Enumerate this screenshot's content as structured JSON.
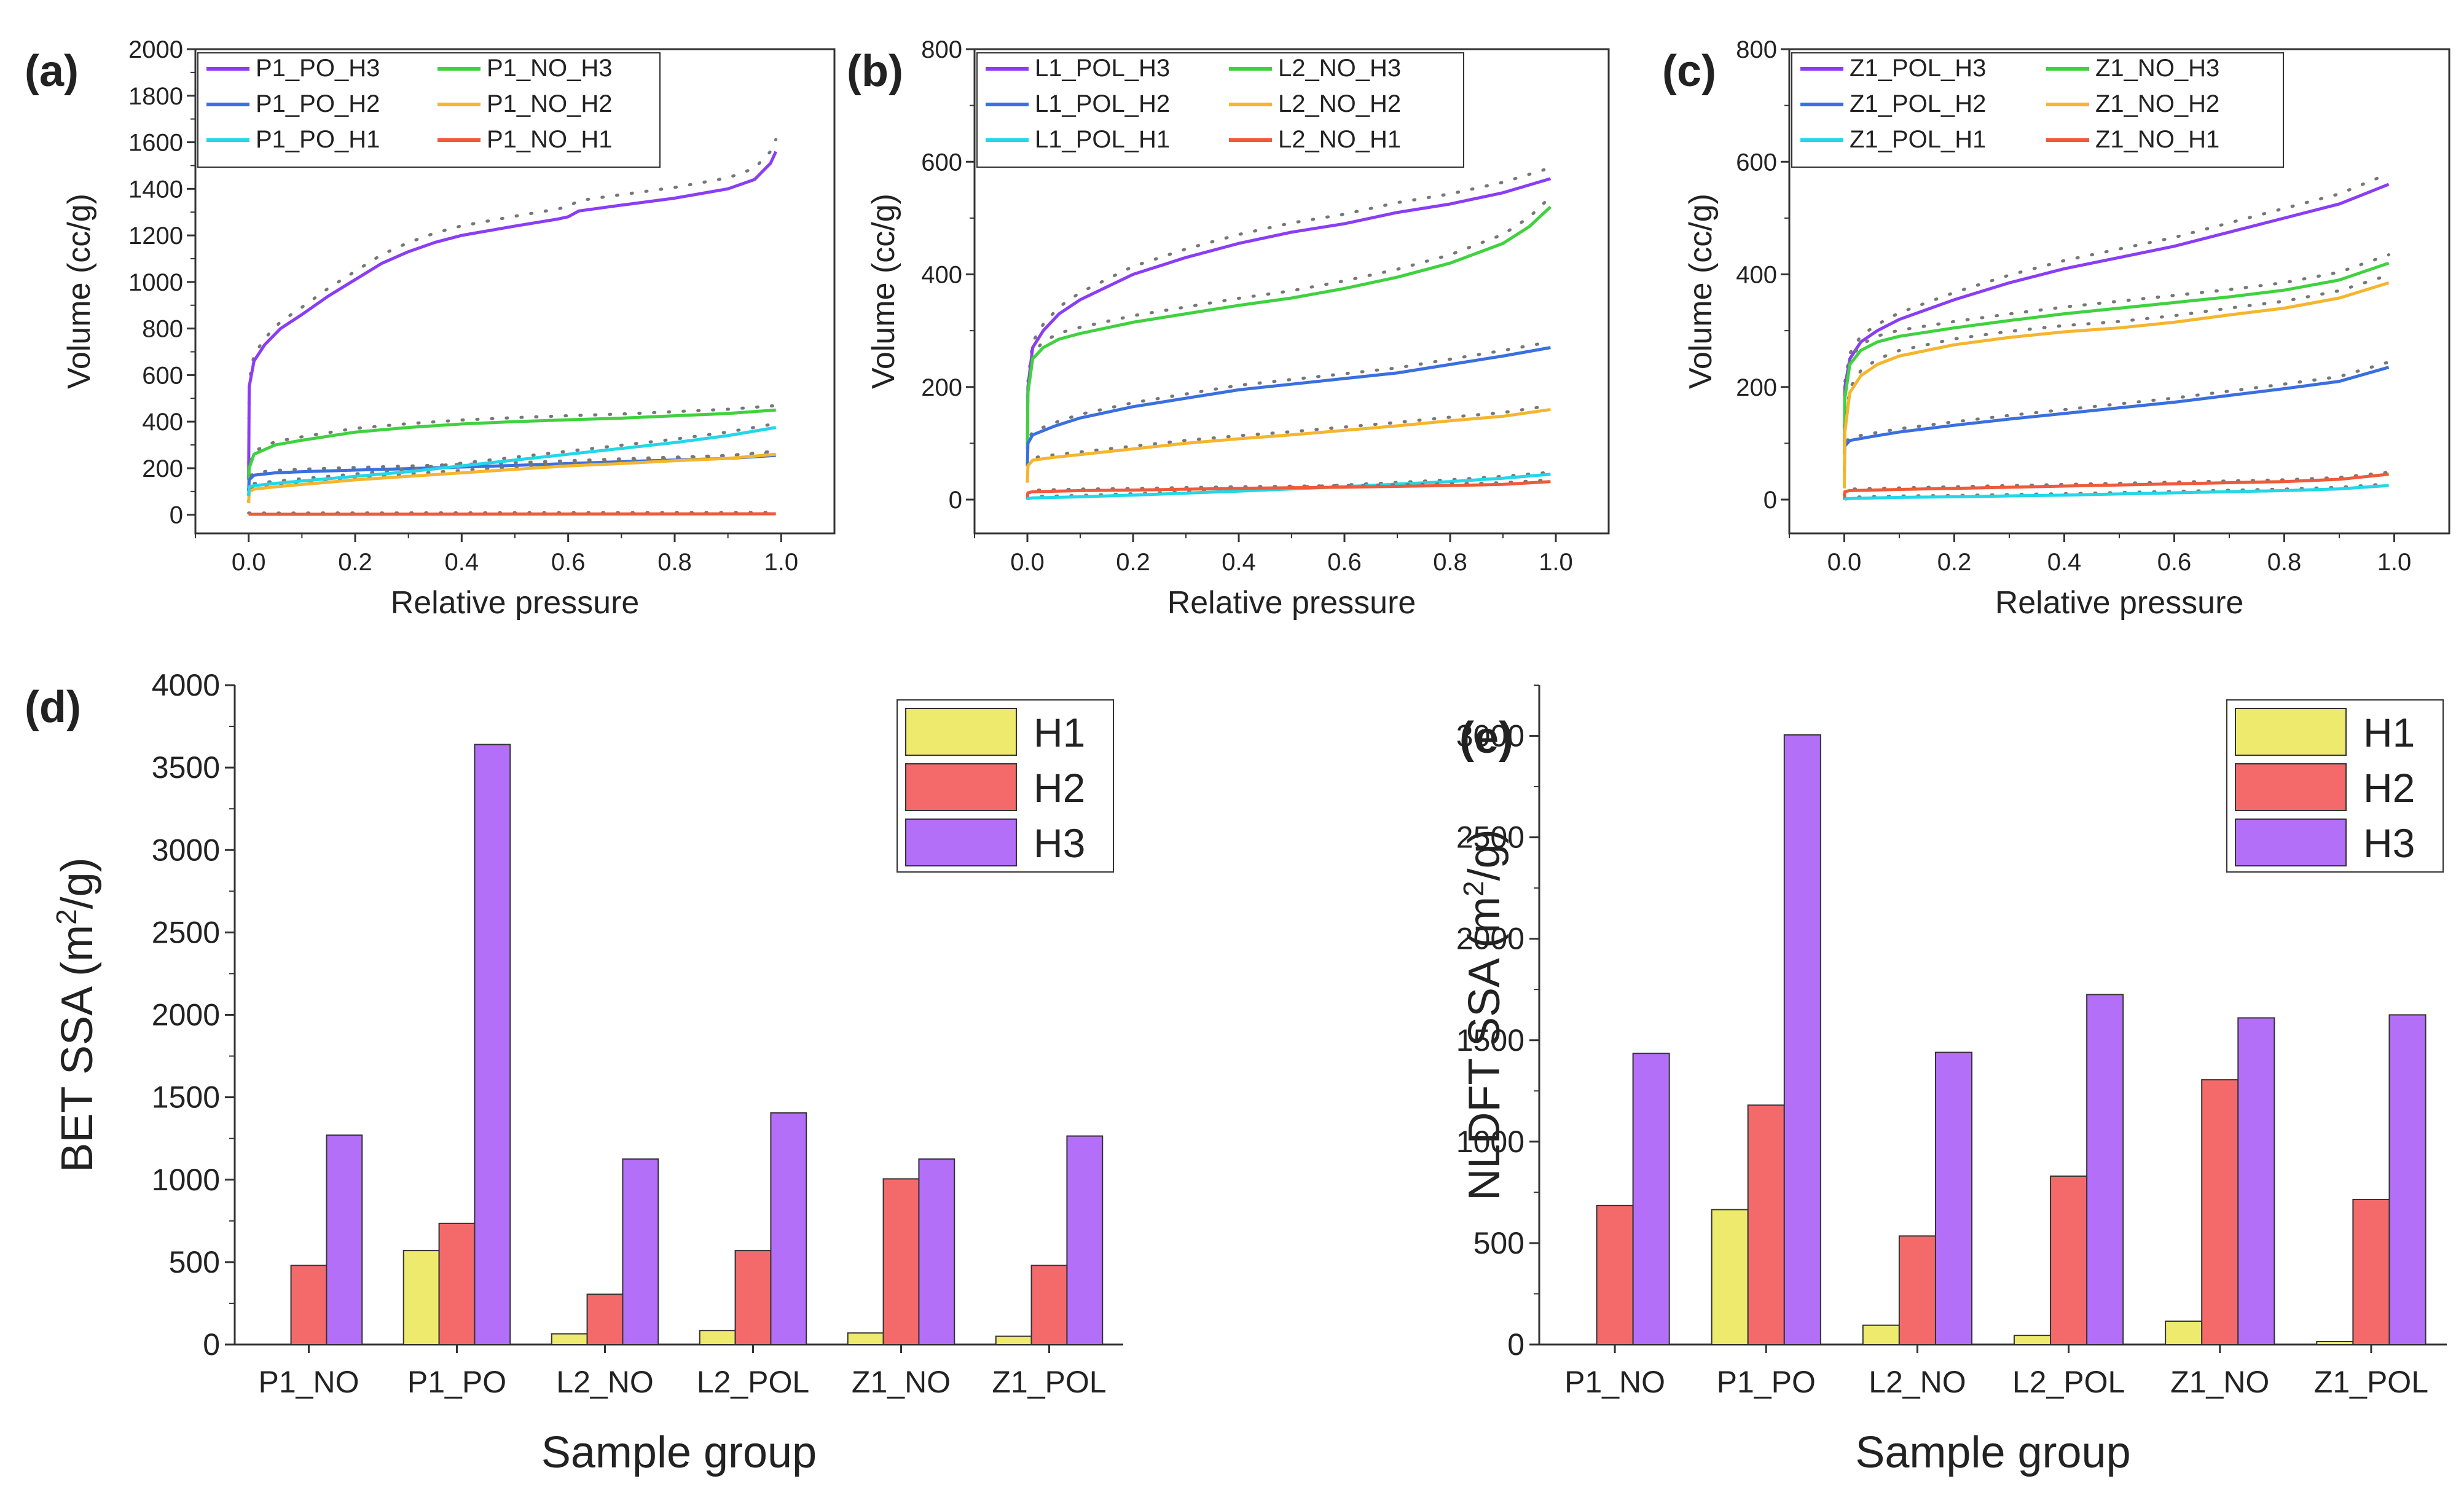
{
  "figure": {
    "colors": {
      "P1_PO_H3": "#8a3df5",
      "P1_NO_H3": "#3fd23f",
      "P1_PO_H2": "#3a6fe0",
      "P1_NO_H2": "#f5b62d",
      "P1_PO_H1": "#22d7e8",
      "P1_NO_H1": "#ee5a3a",
      "H1": "#eeea6e",
      "H2": "#f46a6a",
      "H3": "#b46ff8",
      "dots": "#777777"
    },
    "isotherm_panels": [
      {
        "label": "(a)",
        "xlabel": "Relative pressure",
        "ylabel": "Volume (cc/g)",
        "xlim": [
          -0.1,
          1.1
        ],
        "ylim": [
          -80,
          2000
        ],
        "xticks": [
          "0.0",
          "0.2",
          "0.4",
          "0.6",
          "0.8",
          "1.0"
        ],
        "yticks": [
          "0",
          "200",
          "400",
          "600",
          "800",
          "1000",
          "1200",
          "1400",
          "1600",
          "1800",
          "2000"
        ],
        "legend": [
          "P1_PO_H3",
          "P1_NO_H3",
          "P1_PO_H2",
          "P1_NO_H2",
          "P1_PO_H1",
          "P1_NO_H1"
        ]
      },
      {
        "label": "(b)",
        "xlabel": "Relative pressure",
        "ylabel": "Volume (cc/g)",
        "xlim": [
          -0.1,
          1.1
        ],
        "ylim": [
          -60,
          800
        ],
        "xticks": [
          "0.0",
          "0.2",
          "0.4",
          "0.6",
          "0.8",
          "1.0"
        ],
        "yticks": [
          "0",
          "200",
          "400",
          "600",
          "800"
        ],
        "legend": [
          "L1_POL_H3",
          "L2_NO_H3",
          "L1_POL_H2",
          "L2_NO_H2",
          "L1_POL_H1",
          "L2_NO_H1"
        ]
      },
      {
        "label": "(c)",
        "xlabel": "Relative pressure",
        "ylabel": "Volume (cc/g)",
        "xlim": [
          -0.1,
          1.1
        ],
        "ylim": [
          -60,
          800
        ],
        "xticks": [
          "0.0",
          "0.2",
          "0.4",
          "0.6",
          "0.8",
          "1.0"
        ],
        "yticks": [
          "0",
          "200",
          "400",
          "600",
          "800"
        ],
        "legend": [
          "Z1_POL_H3",
          "Z1_NO_H3",
          "Z1_POL_H2",
          "Z1_NO_H2",
          "Z1_POL_H1",
          "Z1_NO_H1"
        ]
      }
    ],
    "bar_panels": [
      {
        "label": "(d)",
        "xlabel": "Sample group",
        "ylabel_main": "BET SSA (m",
        "ylabel_sup": "2",
        "ylabel_end": "/g)",
        "ylim": [
          0,
          4000
        ],
        "yticks": [
          "0",
          "500",
          "1000",
          "1500",
          "2000",
          "2500",
          "3000",
          "3500",
          "4000"
        ],
        "legend": [
          "H1",
          "H2",
          "H3"
        ]
      },
      {
        "label": "(e)",
        "xlabel": "Sample group",
        "ylabel_main": "NLDFT SSA (m",
        "ylabel_sup": "2",
        "ylabel_end": "/g)",
        "ylim": [
          0,
          3250
        ],
        "yticks": [
          "0",
          "500",
          "1000",
          "1500",
          "2000",
          "2500",
          "3000"
        ],
        "legend": [
          "H1",
          "H2",
          "H3"
        ]
      }
    ]
  },
  "chart_data": [
    {
      "type": "line",
      "title": "(a)",
      "xlabel": "Relative pressure",
      "ylabel": "Volume (cc/g)",
      "xlim": [
        -0.1,
        1.1
      ],
      "ylim": [
        -80,
        2000
      ],
      "series": [
        {
          "name": "P1_PO_H3",
          "x": [
            0,
            0.001,
            0.01,
            0.03,
            0.06,
            0.1,
            0.15,
            0.2,
            0.25,
            0.3,
            0.35,
            0.4,
            0.5,
            0.58,
            0.6,
            0.62,
            0.7,
            0.8,
            0.9,
            0.95,
            0.98,
            0.99
          ],
          "y": [
            150,
            550,
            660,
            730,
            800,
            860,
            940,
            1010,
            1080,
            1130,
            1170,
            1200,
            1240,
            1270,
            1280,
            1305,
            1330,
            1360,
            1400,
            1440,
            1510,
            1560
          ]
        },
        {
          "name": "P1_NO_H3",
          "x": [
            0,
            0.001,
            0.01,
            0.05,
            0.1,
            0.2,
            0.3,
            0.4,
            0.5,
            0.6,
            0.7,
            0.8,
            0.9,
            0.99
          ],
          "y": [
            100,
            200,
            260,
            300,
            320,
            355,
            375,
            390,
            400,
            408,
            415,
            425,
            435,
            450
          ]
        },
        {
          "name": "P1_PO_H2",
          "x": [
            0,
            0.001,
            0.01,
            0.05,
            0.1,
            0.2,
            0.3,
            0.4,
            0.5,
            0.6,
            0.7,
            0.8,
            0.9,
            0.99
          ],
          "y": [
            100,
            150,
            170,
            180,
            185,
            192,
            198,
            205,
            212,
            220,
            228,
            235,
            242,
            255
          ]
        },
        {
          "name": "P1_NO_H2",
          "x": [
            0,
            0.001,
            0.01,
            0.05,
            0.1,
            0.2,
            0.3,
            0.4,
            0.5,
            0.6,
            0.7,
            0.8,
            0.9,
            0.99
          ],
          "y": [
            50,
            100,
            110,
            120,
            130,
            150,
            165,
            180,
            195,
            210,
            220,
            232,
            242,
            260
          ]
        },
        {
          "name": "P1_PO_H1",
          "x": [
            0,
            0.001,
            0.01,
            0.05,
            0.1,
            0.2,
            0.3,
            0.4,
            0.5,
            0.6,
            0.7,
            0.8,
            0.9,
            0.99
          ],
          "y": [
            80,
            120,
            125,
            135,
            145,
            165,
            185,
            210,
            235,
            260,
            285,
            310,
            340,
            375
          ]
        },
        {
          "name": "P1_NO_H1",
          "x": [
            0,
            0.5,
            0.99
          ],
          "y": [
            2,
            3,
            4
          ]
        }
      ],
      "model_fits_dotted": true
    },
    {
      "type": "line",
      "title": "(b)",
      "xlabel": "Relative pressure",
      "ylabel": "Volume (cc/g)",
      "xlim": [
        -0.1,
        1.1
      ],
      "ylim": [
        -60,
        800
      ],
      "series": [
        {
          "name": "L1_POL_H3",
          "x": [
            0,
            0.001,
            0.01,
            0.03,
            0.06,
            0.1,
            0.2,
            0.3,
            0.4,
            0.5,
            0.6,
            0.7,
            0.8,
            0.9,
            0.99
          ],
          "y": [
            100,
            200,
            270,
            300,
            330,
            355,
            400,
            430,
            455,
            475,
            490,
            510,
            525,
            545,
            570
          ]
        },
        {
          "name": "L2_NO_H3",
          "x": [
            0,
            0.001,
            0.01,
            0.03,
            0.06,
            0.1,
            0.2,
            0.3,
            0.4,
            0.5,
            0.6,
            0.7,
            0.8,
            0.9,
            0.95,
            0.99
          ],
          "y": [
            90,
            190,
            250,
            270,
            285,
            295,
            315,
            330,
            345,
            358,
            375,
            395,
            420,
            455,
            485,
            520
          ]
        },
        {
          "name": "L1_POL_H2",
          "x": [
            0,
            0.001,
            0.01,
            0.05,
            0.1,
            0.2,
            0.3,
            0.4,
            0.5,
            0.6,
            0.7,
            0.8,
            0.9,
            0.99
          ],
          "y": [
            60,
            100,
            115,
            130,
            145,
            165,
            180,
            195,
            205,
            215,
            225,
            240,
            255,
            270
          ]
        },
        {
          "name": "L2_NO_H2",
          "x": [
            0,
            0.001,
            0.01,
            0.05,
            0.1,
            0.2,
            0.3,
            0.4,
            0.5,
            0.6,
            0.7,
            0.8,
            0.9,
            0.99
          ],
          "y": [
            30,
            60,
            70,
            75,
            80,
            90,
            100,
            108,
            115,
            123,
            131,
            140,
            148,
            160
          ]
        },
        {
          "name": "L1_POL_H1",
          "x": [
            0,
            0.001,
            0.01,
            0.1,
            0.2,
            0.4,
            0.6,
            0.8,
            0.9,
            0.99
          ],
          "y": [
            0,
            2,
            3,
            5,
            8,
            15,
            23,
            32,
            38,
            45
          ]
        },
        {
          "name": "L2_NO_H1",
          "x": [
            0,
            0.001,
            0.01,
            0.1,
            0.2,
            0.4,
            0.6,
            0.8,
            0.9,
            0.99
          ],
          "y": [
            5,
            12,
            14,
            16,
            17,
            20,
            22,
            25,
            27,
            32
          ]
        }
      ],
      "model_fits_dotted": true
    },
    {
      "type": "line",
      "title": "(c)",
      "xlabel": "Relative pressure",
      "ylabel": "Volume (cc/g)",
      "xlim": [
        -0.1,
        1.1
      ],
      "ylim": [
        -60,
        800
      ],
      "series": [
        {
          "name": "Z1_POL_H3",
          "x": [
            0,
            0.001,
            0.01,
            0.03,
            0.06,
            0.1,
            0.2,
            0.3,
            0.4,
            0.5,
            0.6,
            0.7,
            0.8,
            0.9,
            0.99
          ],
          "y": [
            100,
            200,
            250,
            280,
            300,
            320,
            355,
            385,
            410,
            430,
            450,
            475,
            500,
            525,
            560
          ]
        },
        {
          "name": "Z1_NO_H3",
          "x": [
            0,
            0.001,
            0.01,
            0.03,
            0.06,
            0.1,
            0.2,
            0.3,
            0.4,
            0.5,
            0.6,
            0.7,
            0.8,
            0.9,
            0.99
          ],
          "y": [
            80,
            180,
            240,
            265,
            280,
            290,
            305,
            318,
            330,
            340,
            350,
            360,
            372,
            390,
            420
          ]
        },
        {
          "name": "Z1_POL_H2",
          "x": [
            0,
            0.001,
            0.01,
            0.05,
            0.1,
            0.2,
            0.3,
            0.4,
            0.5,
            0.6,
            0.7,
            0.8,
            0.9,
            0.99
          ],
          "y": [
            50,
            95,
            105,
            112,
            120,
            132,
            143,
            153,
            163,
            173,
            185,
            197,
            210,
            235
          ]
        },
        {
          "name": "Z1_NO_H2",
          "x": [
            0,
            0.001,
            0.01,
            0.03,
            0.06,
            0.1,
            0.2,
            0.3,
            0.4,
            0.5,
            0.6,
            0.7,
            0.8,
            0.9,
            0.99
          ],
          "y": [
            20,
            120,
            190,
            220,
            240,
            255,
            275,
            288,
            298,
            305,
            315,
            328,
            340,
            358,
            385
          ]
        },
        {
          "name": "Z1_POL_H1",
          "x": [
            0,
            0.001,
            0.01,
            0.1,
            0.2,
            0.4,
            0.6,
            0.8,
            0.9,
            0.99
          ],
          "y": [
            0,
            1,
            2,
            4,
            5,
            8,
            12,
            16,
            19,
            25
          ]
        },
        {
          "name": "Z1_NO_H1",
          "x": [
            0,
            0.001,
            0.01,
            0.1,
            0.2,
            0.4,
            0.6,
            0.8,
            0.9,
            0.99
          ],
          "y": [
            5,
            14,
            16,
            18,
            20,
            24,
            28,
            32,
            36,
            45
          ]
        }
      ],
      "model_fits_dotted": true
    },
    {
      "type": "bar",
      "title": "(d)",
      "xlabel": "Sample group",
      "ylabel": "BET SSA (m2/g)",
      "ylim": [
        0,
        4000
      ],
      "categories": [
        "P1_NO",
        "P1_PO",
        "L2_NO",
        "L2_POL",
        "Z1_NO",
        "Z1_POL"
      ],
      "series": [
        {
          "name": "H1",
          "values": [
            0,
            570,
            65,
            85,
            70,
            50
          ]
        },
        {
          "name": "H2",
          "values": [
            480,
            735,
            305,
            570,
            1005,
            480
          ]
        },
        {
          "name": "H3",
          "values": [
            1270,
            3640,
            1125,
            1405,
            1125,
            1265
          ]
        }
      ]
    },
    {
      "type": "bar",
      "title": "(e)",
      "xlabel": "Sample group",
      "ylabel": "NLDFT SSA (m2/g)",
      "ylim": [
        0,
        3250
      ],
      "categories": [
        "P1_NO",
        "P1_PO",
        "L2_NO",
        "L2_POL",
        "Z1_NO",
        "Z1_POL"
      ],
      "series": [
        {
          "name": "H1",
          "values": [
            0,
            665,
            95,
            45,
            115,
            15
          ]
        },
        {
          "name": "H2",
          "values": [
            685,
            1180,
            535,
            830,
            1305,
            715
          ]
        },
        {
          "name": "H3",
          "values": [
            1435,
            3005,
            1440,
            1725,
            1610,
            1625
          ]
        }
      ]
    }
  ]
}
